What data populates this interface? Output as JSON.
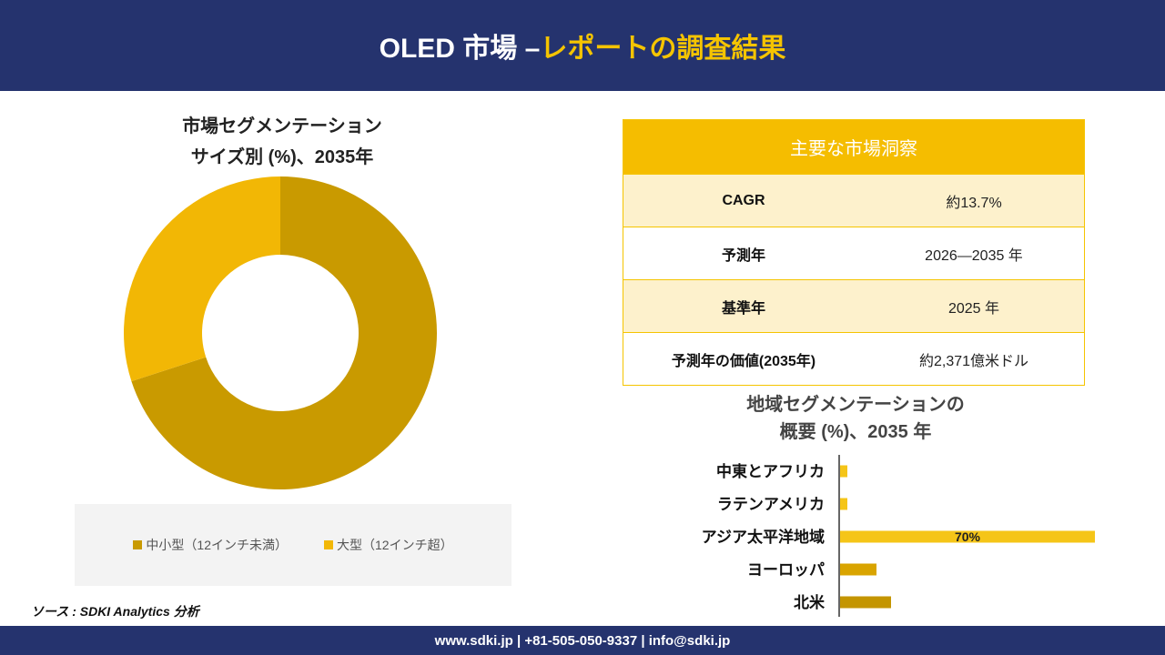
{
  "header": {
    "title_white": "OLED 市場 –",
    "title_gold": "レポートの調査結果"
  },
  "donut": {
    "title_line1": "市場セグメンテーション",
    "title_line2": "サイズ別 (%)、2035年"
  },
  "insights": {
    "heading": "主要な市場洞察",
    "rows": [
      {
        "label": "CAGR",
        "value": "約13.7%"
      },
      {
        "label": "予測年",
        "value": "2026—2035 年"
      },
      {
        "label": "基準年",
        "value": "2025 年"
      },
      {
        "label": "予測年の価値(2035年)",
        "value": "約2,371億米ドル"
      }
    ]
  },
  "regional": {
    "title_line1": "地域セグメンテーションの",
    "title_line2": "概要 (%)、2035 年"
  },
  "source": "ソース : SDKI Analytics 分析",
  "footer": {
    "contact": "www.sdki.jp | +81-505-050-9337 | info@sdki.jp"
  },
  "chart_data": [
    {
      "type": "pie",
      "title": "市場セグメンテーション サイズ別 (%)、2035年",
      "donut": true,
      "categories": [
        "中小型（12インチ未満）",
        "大型（12インチ超）"
      ],
      "values": [
        70,
        30
      ],
      "colors": [
        "#c99a00",
        "#f2b705"
      ],
      "legend": "bottom"
    },
    {
      "type": "bar",
      "orientation": "horizontal",
      "title": "地域セグメンテーションの 概要 (%)、2035 年",
      "categories": [
        "中東とアフリカ",
        "ラテンアメリカ",
        "アジア太平洋地域",
        "ヨーロッパ",
        "北米"
      ],
      "values": [
        2,
        2,
        70,
        10,
        14
      ],
      "data_labels": [
        "",
        "",
        "70%",
        "",
        ""
      ],
      "colors": [
        "#f5c518",
        "#f5c518",
        "#f5c518",
        "#d9a400",
        "#c49500"
      ],
      "xlim": [
        0,
        72
      ]
    }
  ]
}
